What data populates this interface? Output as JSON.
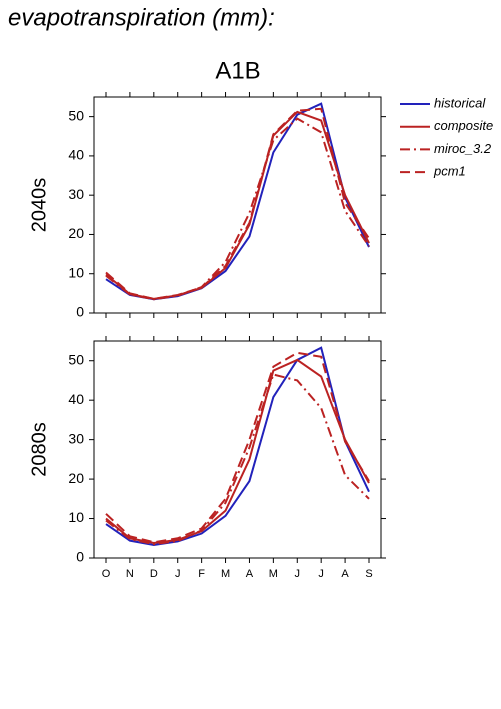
{
  "title": "evapotranspiration (mm):",
  "scenario": "A1B",
  "chart_data": [
    {
      "type": "line",
      "y_label": "2040s",
      "ylim": [
        0,
        55
      ],
      "yticks": [
        0,
        10,
        20,
        30,
        40,
        50
      ],
      "series": [
        {
          "name": "historical",
          "color": "#2222bb",
          "dash": "solid",
          "values": [
            8.6,
            4.6,
            3.5,
            4.3,
            6.3,
            10.7,
            19.5,
            40.9,
            50.5,
            53.3,
            29.4,
            16.8
          ]
        },
        {
          "name": "composite",
          "color": "#bb2222",
          "dash": "solid",
          "values": [
            9.8,
            4.8,
            3.6,
            4.5,
            6.4,
            11.5,
            22.5,
            45.2,
            51.2,
            49,
            30,
            17.8
          ]
        },
        {
          "name": "miroc_3.2",
          "color": "#bb2222",
          "dash": "dashdot",
          "values": [
            9.5,
            4.7,
            3.5,
            4.4,
            6.6,
            13,
            25.5,
            44,
            49.5,
            46,
            26,
            17
          ]
        },
        {
          "name": "pcm1",
          "color": "#bb2222",
          "dash": "dash",
          "values": [
            10.3,
            5,
            3.6,
            4.6,
            6.5,
            12,
            23,
            45.5,
            51.5,
            52,
            28,
            19
          ]
        }
      ]
    },
    {
      "type": "line",
      "y_label": "2080s",
      "categories": [
        "O",
        "N",
        "D",
        "J",
        "F",
        "M",
        "A",
        "M",
        "J",
        "J",
        "A",
        "S"
      ],
      "ylim": [
        0,
        55
      ],
      "yticks": [
        0,
        10,
        20,
        30,
        40,
        50
      ],
      "series": [
        {
          "color": "#2222bb",
          "dash": "solid",
          "values": [
            8.6,
            4.4,
            3.3,
            4.2,
            6.2,
            10.7,
            19.5,
            40.8,
            50.2,
            53.3,
            29.6,
            16.8
          ]
        },
        {
          "color": "#bb2222",
          "dash": "solid",
          "values": [
            10,
            5,
            3.8,
            4.6,
            6.8,
            12,
            25,
            47.5,
            50.2,
            46,
            30,
            19
          ]
        },
        {
          "color": "#bb2222",
          "dash": "dashdot",
          "values": [
            9.5,
            4.8,
            3.5,
            4.3,
            7,
            14,
            28,
            46.5,
            45,
            38,
            21,
            15
          ]
        },
        {
          "color": "#bb2222",
          "dash": "dash",
          "values": [
            11.2,
            5.5,
            4,
            5,
            7.5,
            15,
            30,
            48.5,
            52,
            51,
            29.5,
            19.5
          ]
        }
      ]
    }
  ]
}
